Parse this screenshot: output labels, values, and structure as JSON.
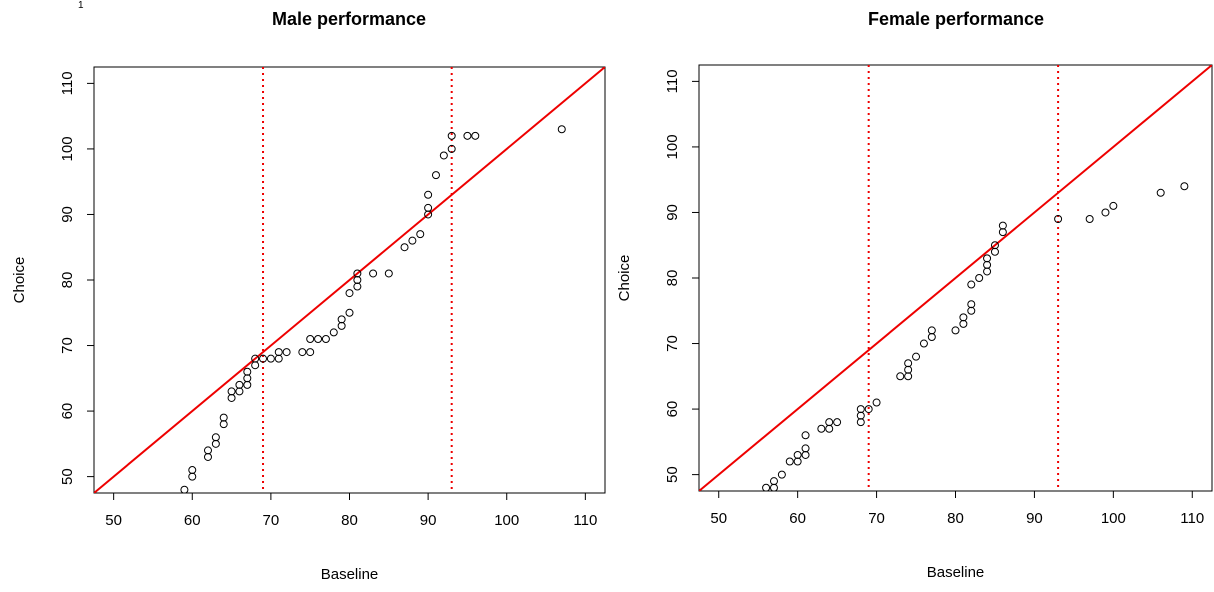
{
  "corner_mark": "1",
  "chart_data": [
    {
      "type": "scatter",
      "title": "Male performance",
      "xlabel": "Baseline",
      "ylabel": "Choice",
      "xlim": [
        47.5,
        112.5
      ],
      "ylim": [
        47.5,
        112.5
      ],
      "xticks": [
        50,
        60,
        70,
        80,
        90,
        100,
        110
      ],
      "yticks": [
        50,
        60,
        70,
        80,
        90,
        100,
        110
      ],
      "reference_line": {
        "type": "identity",
        "color": "#ee0000"
      },
      "vlines": [
        {
          "x": 69,
          "color": "#ee0000",
          "style": "dotted"
        },
        {
          "x": 93,
          "color": "#ee0000",
          "style": "dotted"
        }
      ],
      "marker": "open-circle",
      "points": [
        [
          59,
          48
        ],
        [
          60,
          50
        ],
        [
          60,
          51
        ],
        [
          62,
          53
        ],
        [
          62,
          54
        ],
        [
          63,
          55
        ],
        [
          63,
          56
        ],
        [
          64,
          58
        ],
        [
          64,
          59
        ],
        [
          65,
          62
        ],
        [
          65,
          63
        ],
        [
          66,
          63
        ],
        [
          66,
          64
        ],
        [
          67,
          64
        ],
        [
          67,
          65
        ],
        [
          67,
          66
        ],
        [
          68,
          67
        ],
        [
          68,
          68
        ],
        [
          69,
          68
        ],
        [
          70,
          68
        ],
        [
          71,
          68
        ],
        [
          71,
          69
        ],
        [
          72,
          69
        ],
        [
          74,
          69
        ],
        [
          75,
          69
        ],
        [
          75,
          71
        ],
        [
          76,
          71
        ],
        [
          77,
          71
        ],
        [
          78,
          72
        ],
        [
          79,
          73
        ],
        [
          79,
          74
        ],
        [
          80,
          75
        ],
        [
          80,
          78
        ],
        [
          81,
          79
        ],
        [
          81,
          80
        ],
        [
          81,
          81
        ],
        [
          83,
          81
        ],
        [
          85,
          81
        ],
        [
          87,
          85
        ],
        [
          88,
          86
        ],
        [
          89,
          87
        ],
        [
          90,
          90
        ],
        [
          90,
          91
        ],
        [
          90,
          93
        ],
        [
          91,
          96
        ],
        [
          92,
          99
        ],
        [
          93,
          100
        ],
        [
          93,
          102
        ],
        [
          95,
          102
        ],
        [
          96,
          102
        ],
        [
          107,
          103
        ]
      ]
    },
    {
      "type": "scatter",
      "title": "Female performance",
      "xlabel": "Baseline",
      "ylabel": "Choice",
      "xlim": [
        47.5,
        112.5
      ],
      "ylim": [
        47.5,
        112.5
      ],
      "xticks": [
        50,
        60,
        70,
        80,
        90,
        100,
        110
      ],
      "yticks": [
        50,
        60,
        70,
        80,
        90,
        100,
        110
      ],
      "reference_line": {
        "type": "identity",
        "color": "#ee0000"
      },
      "vlines": [
        {
          "x": 69,
          "color": "#ee0000",
          "style": "dotted"
        },
        {
          "x": 93,
          "color": "#ee0000",
          "style": "dotted"
        }
      ],
      "marker": "open-circle",
      "points": [
        [
          56,
          48
        ],
        [
          57,
          48
        ],
        [
          57,
          49
        ],
        [
          58,
          50
        ],
        [
          59,
          52
        ],
        [
          60,
          52
        ],
        [
          60,
          53
        ],
        [
          61,
          53
        ],
        [
          61,
          54
        ],
        [
          61,
          56
        ],
        [
          63,
          57
        ],
        [
          64,
          57
        ],
        [
          64,
          58
        ],
        [
          65,
          58
        ],
        [
          68,
          58
        ],
        [
          68,
          59
        ],
        [
          68,
          60
        ],
        [
          69,
          60
        ],
        [
          70,
          61
        ],
        [
          73,
          65
        ],
        [
          74,
          65
        ],
        [
          74,
          66
        ],
        [
          74,
          67
        ],
        [
          75,
          68
        ],
        [
          76,
          70
        ],
        [
          77,
          71
        ],
        [
          77,
          72
        ],
        [
          80,
          72
        ],
        [
          81,
          73
        ],
        [
          81,
          74
        ],
        [
          82,
          75
        ],
        [
          82,
          76
        ],
        [
          82,
          79
        ],
        [
          83,
          80
        ],
        [
          84,
          81
        ],
        [
          84,
          82
        ],
        [
          84,
          83
        ],
        [
          85,
          84
        ],
        [
          85,
          85
        ],
        [
          86,
          87
        ],
        [
          86,
          88
        ],
        [
          93,
          89
        ],
        [
          97,
          89
        ],
        [
          99,
          90
        ],
        [
          100,
          91
        ],
        [
          106,
          93
        ],
        [
          109,
          94
        ]
      ]
    }
  ]
}
